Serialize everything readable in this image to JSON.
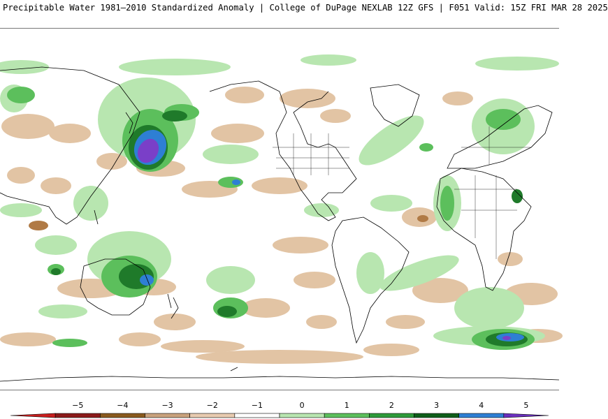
{
  "header": {
    "title": "Precipitable Water 1981–2010 Standardized Anomaly | College of DuPage NEXLAB   12Z GFS | F051 Valid: 15Z FRI MAR 28 2025"
  },
  "colorbar": {
    "ticks": [
      {
        "label": "−5",
        "value": -5
      },
      {
        "label": "−4",
        "value": -4
      },
      {
        "label": "−3",
        "value": -3
      },
      {
        "label": "−2",
        "value": -2
      },
      {
        "label": "−1",
        "value": -1
      },
      {
        "label": "0",
        "value": 0
      },
      {
        "label": "1",
        "value": 1
      },
      {
        "label": "2",
        "value": 2
      },
      {
        "label": "3",
        "value": 3
      },
      {
        "label": "4",
        "value": 4
      },
      {
        "label": "5",
        "value": 5
      }
    ],
    "colors": [
      "#c81e1e",
      "#8c1a1a",
      "#8a5a1e",
      "#c9a27d",
      "#e8cbb0",
      "#ffffff",
      "#b8e6b0",
      "#5cbf5c",
      "#2e9a3a",
      "#0f5e1a",
      "#2e7fd4",
      "#6b2fbf"
    ]
  },
  "map": {
    "palette": {
      "light_green": "#b8e6b0",
      "mid_green": "#5cbf5c",
      "dark_green": "#1f7a2a",
      "blue": "#2e7fd4",
      "purple": "#7a3fc8",
      "tan": "#e2c4a4",
      "brown": "#b07a45",
      "coastline": "#000000"
    }
  }
}
